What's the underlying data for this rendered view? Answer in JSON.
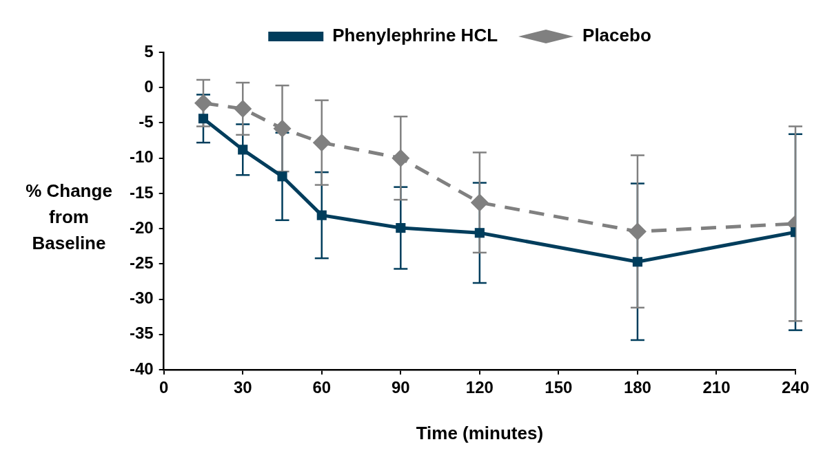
{
  "chart_data": {
    "type": "line",
    "xlabel": "Time (minutes)",
    "ylabel": "% Change from Baseline",
    "xlim": [
      0,
      240
    ],
    "xticks": [
      0,
      30,
      60,
      90,
      120,
      150,
      180,
      210,
      240
    ],
    "ylim": [
      -40,
      5
    ],
    "yticks": [
      5,
      0,
      -5,
      -10,
      -15,
      -20,
      -25,
      -30,
      -35,
      -40
    ],
    "grid": false,
    "legend": "top",
    "x": [
      15,
      30,
      45,
      60,
      90,
      120,
      180,
      240
    ],
    "series": [
      {
        "name": "Phenylephrine HCL",
        "color": "#003d5c",
        "marker": "square",
        "line_style": "solid",
        "values": [
          -4.4,
          -8.8,
          -12.6,
          -18.1,
          -19.9,
          -20.6,
          -24.7,
          -20.5
        ],
        "errors": [
          3.4,
          3.6,
          6.2,
          6.1,
          5.8,
          7.1,
          11.1,
          13.9
        ]
      },
      {
        "name": "Placebo",
        "color": "#808080",
        "marker": "diamond",
        "line_style": "dashed",
        "values": [
          -2.2,
          -3.0,
          -5.8,
          -7.8,
          -10.0,
          -16.3,
          -20.4,
          -19.3
        ],
        "errors": [
          3.3,
          3.7,
          6.1,
          6.0,
          5.9,
          7.1,
          10.8,
          13.8
        ]
      }
    ]
  }
}
